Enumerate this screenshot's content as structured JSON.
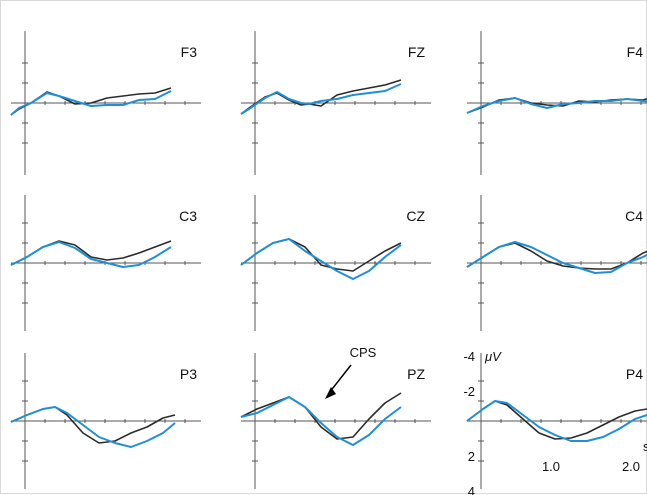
{
  "colors": {
    "black_series": "#2b2b2b",
    "blue_series": "#1f8fd6",
    "axis": "#555555",
    "background": "#ffffff"
  },
  "chart_data": {
    "type": "line",
    "title": "",
    "layout": "3x3 grid of ERP waveform panels",
    "y_axis": {
      "label": "μV",
      "ticks": [
        "-4",
        "-2",
        "2",
        "4"
      ],
      "range": [
        -4,
        4
      ],
      "inverted": true,
      "negative_up": true
    },
    "x_axis": {
      "ticks": [
        "1.0",
        "2.0"
      ],
      "unit": "s",
      "range": [
        0,
        2.5
      ]
    },
    "annotation": {
      "text": "CPS",
      "panel": "PZ"
    },
    "panels": [
      {
        "name": "F3",
        "black": [
          [
            0,
            1.2
          ],
          [
            0.1,
            0.6
          ],
          [
            0.25,
            0
          ],
          [
            0.45,
            -1.1
          ],
          [
            0.6,
            -0.7
          ],
          [
            0.8,
            0.1
          ],
          [
            1.0,
            0
          ],
          [
            1.2,
            -0.5
          ],
          [
            1.4,
            -0.7
          ],
          [
            1.6,
            -0.9
          ],
          [
            1.8,
            -1.0
          ],
          [
            2.0,
            -1.5
          ]
        ],
        "blue": [
          [
            0,
            1.2
          ],
          [
            0.1,
            0.5
          ],
          [
            0.25,
            0
          ],
          [
            0.45,
            -1.0
          ],
          [
            0.6,
            -0.7
          ],
          [
            0.8,
            -0.2
          ],
          [
            1.0,
            0.3
          ],
          [
            1.2,
            0.2
          ],
          [
            1.4,
            0.2
          ],
          [
            1.6,
            -0.3
          ],
          [
            1.8,
            -0.4
          ],
          [
            2.0,
            -1.2
          ]
        ]
      },
      {
        "name": "FZ",
        "black": [
          [
            0,
            1.1
          ],
          [
            0.1,
            0.5
          ],
          [
            0.3,
            -0.6
          ],
          [
            0.45,
            -1.0
          ],
          [
            0.6,
            -0.3
          ],
          [
            0.75,
            0.2
          ],
          [
            0.85,
            0.1
          ],
          [
            1.0,
            0.3
          ],
          [
            1.2,
            -0.8
          ],
          [
            1.4,
            -1.2
          ],
          [
            1.6,
            -1.5
          ],
          [
            1.8,
            -1.8
          ],
          [
            2.0,
            -2.3
          ]
        ],
        "blue": [
          [
            0,
            1.1
          ],
          [
            0.1,
            0.6
          ],
          [
            0.3,
            -0.5
          ],
          [
            0.45,
            -1.1
          ],
          [
            0.6,
            -0.4
          ],
          [
            0.75,
            0
          ],
          [
            0.85,
            0.1
          ],
          [
            1.0,
            -0.2
          ],
          [
            1.2,
            -0.4
          ],
          [
            1.4,
            -0.8
          ],
          [
            1.6,
            -1.0
          ],
          [
            1.8,
            -1.2
          ],
          [
            2.0,
            -1.9
          ]
        ]
      },
      {
        "name": "F4",
        "black": [
          [
            0,
            1.0
          ],
          [
            0.2,
            0.4
          ],
          [
            0.4,
            -0.3
          ],
          [
            0.6,
            -0.5
          ],
          [
            0.8,
            0
          ],
          [
            1.0,
            0.2
          ],
          [
            1.2,
            0.3
          ],
          [
            1.4,
            -0.2
          ],
          [
            1.6,
            -0.1
          ],
          [
            1.8,
            -0.3
          ],
          [
            2.0,
            -0.4
          ],
          [
            2.2,
            -0.3
          ],
          [
            2.4,
            -0.8
          ],
          [
            2.5,
            -1.4
          ]
        ],
        "blue": [
          [
            0,
            1.0
          ],
          [
            0.2,
            0.3
          ],
          [
            0.4,
            -0.2
          ],
          [
            0.6,
            -0.5
          ],
          [
            0.8,
            0.1
          ],
          [
            1.0,
            0.5
          ],
          [
            1.2,
            0.1
          ],
          [
            1.4,
            0.0
          ],
          [
            1.6,
            -0.2
          ],
          [
            1.8,
            -0.2
          ],
          [
            2.0,
            -0.4
          ],
          [
            2.2,
            -0.2
          ],
          [
            2.4,
            -0.1
          ],
          [
            2.5,
            -0.3
          ]
        ]
      },
      {
        "name": "C3",
        "black": [
          [
            0,
            0.2
          ],
          [
            0.2,
            -0.6
          ],
          [
            0.4,
            -1.6
          ],
          [
            0.6,
            -2.2
          ],
          [
            0.8,
            -1.8
          ],
          [
            1.0,
            -0.6
          ],
          [
            1.2,
            -0.3
          ],
          [
            1.4,
            -0.5
          ],
          [
            1.6,
            -1.0
          ],
          [
            1.8,
            -1.6
          ],
          [
            2.0,
            -2.2
          ]
        ],
        "blue": [
          [
            0,
            0.2
          ],
          [
            0.2,
            -0.6
          ],
          [
            0.4,
            -1.6
          ],
          [
            0.6,
            -2.1
          ],
          [
            0.8,
            -1.5
          ],
          [
            1.0,
            -0.4
          ],
          [
            1.2,
            0.0
          ],
          [
            1.4,
            0.4
          ],
          [
            1.6,
            0.2
          ],
          [
            1.8,
            -0.6
          ],
          [
            2.0,
            -1.6
          ]
        ]
      },
      {
        "name": "CZ",
        "black": [
          [
            0,
            0.2
          ],
          [
            0.2,
            -1.0
          ],
          [
            0.4,
            -2.0
          ],
          [
            0.6,
            -2.4
          ],
          [
            0.8,
            -1.6
          ],
          [
            1.0,
            0.2
          ],
          [
            1.2,
            0.6
          ],
          [
            1.4,
            0.8
          ],
          [
            1.6,
            -0.2
          ],
          [
            1.8,
            -1.2
          ],
          [
            2.0,
            -2.0
          ]
        ],
        "blue": [
          [
            0,
            0.2
          ],
          [
            0.2,
            -1.0
          ],
          [
            0.4,
            -2.0
          ],
          [
            0.6,
            -2.4
          ],
          [
            0.8,
            -1.2
          ],
          [
            1.0,
            -0.2
          ],
          [
            1.2,
            0.8
          ],
          [
            1.4,
            1.6
          ],
          [
            1.6,
            0.8
          ],
          [
            1.8,
            -0.6
          ],
          [
            2.0,
            -1.8
          ]
        ]
      },
      {
        "name": "C4",
        "black": [
          [
            0,
            0.4
          ],
          [
            0.2,
            -0.6
          ],
          [
            0.4,
            -1.6
          ],
          [
            0.6,
            -2.0
          ],
          [
            0.8,
            -1.2
          ],
          [
            1.0,
            -0.2
          ],
          [
            1.2,
            0.3
          ],
          [
            1.4,
            0.5
          ],
          [
            1.6,
            0.6
          ],
          [
            1.8,
            0.6
          ],
          [
            2.0,
            0.0
          ],
          [
            2.2,
            -1.0
          ],
          [
            2.4,
            -1.6
          ]
        ],
        "blue": [
          [
            0,
            0.4
          ],
          [
            0.2,
            -0.6
          ],
          [
            0.4,
            -1.6
          ],
          [
            0.6,
            -2.1
          ],
          [
            0.8,
            -1.6
          ],
          [
            1.0,
            -0.8
          ],
          [
            1.2,
            0.0
          ],
          [
            1.4,
            0.5
          ],
          [
            1.6,
            1.0
          ],
          [
            1.8,
            0.9
          ],
          [
            2.0,
            0.0
          ],
          [
            2.2,
            -0.6
          ],
          [
            2.4,
            -1.4
          ]
        ]
      },
      {
        "name": "P3",
        "black": [
          [
            0,
            0.1
          ],
          [
            0.2,
            -0.6
          ],
          [
            0.4,
            -1.2
          ],
          [
            0.55,
            -1.4
          ],
          [
            0.7,
            -0.6
          ],
          [
            0.9,
            1.2
          ],
          [
            1.1,
            2.2
          ],
          [
            1.3,
            2.0
          ],
          [
            1.5,
            1.2
          ],
          [
            1.7,
            0.6
          ],
          [
            1.9,
            -0.3
          ],
          [
            2.05,
            -0.6
          ]
        ],
        "blue": [
          [
            0,
            0.1
          ],
          [
            0.2,
            -0.6
          ],
          [
            0.4,
            -1.2
          ],
          [
            0.55,
            -1.4
          ],
          [
            0.7,
            -0.8
          ],
          [
            0.9,
            0.4
          ],
          [
            1.1,
            1.6
          ],
          [
            1.3,
            2.2
          ],
          [
            1.5,
            2.6
          ],
          [
            1.7,
            2.0
          ],
          [
            1.9,
            1.2
          ],
          [
            2.05,
            0.2
          ]
        ]
      },
      {
        "name": "PZ",
        "black": [
          [
            0,
            -0.4
          ],
          [
            0.2,
            -1.2
          ],
          [
            0.4,
            -1.8
          ],
          [
            0.6,
            -2.4
          ],
          [
            0.8,
            -1.4
          ],
          [
            1.0,
            0.6
          ],
          [
            1.2,
            1.8
          ],
          [
            1.4,
            1.6
          ],
          [
            1.6,
            -0.2
          ],
          [
            1.8,
            -1.8
          ],
          [
            2.0,
            -2.8
          ]
        ],
        "blue": [
          [
            0,
            -0.4
          ],
          [
            0.2,
            -0.8
          ],
          [
            0.4,
            -1.6
          ],
          [
            0.6,
            -2.4
          ],
          [
            0.8,
            -1.4
          ],
          [
            1.0,
            0.2
          ],
          [
            1.2,
            1.6
          ],
          [
            1.4,
            2.4
          ],
          [
            1.6,
            1.4
          ],
          [
            1.8,
            -0.2
          ],
          [
            2.0,
            -1.4
          ]
        ]
      },
      {
        "name": "P4",
        "black": [
          [
            0,
            0.0
          ],
          [
            0.2,
            -1.2
          ],
          [
            0.35,
            -2.0
          ],
          [
            0.5,
            -1.6
          ],
          [
            0.7,
            -0.2
          ],
          [
            0.9,
            1.2
          ],
          [
            1.1,
            1.8
          ],
          [
            1.3,
            1.7
          ],
          [
            1.5,
            1.2
          ],
          [
            1.7,
            0.4
          ],
          [
            1.9,
            -0.4
          ],
          [
            2.1,
            -1.0
          ],
          [
            2.25,
            -1.2
          ]
        ],
        "blue": [
          [
            0,
            0.0
          ],
          [
            0.2,
            -1.2
          ],
          [
            0.35,
            -2.0
          ],
          [
            0.5,
            -1.8
          ],
          [
            0.7,
            -0.6
          ],
          [
            0.9,
            0.6
          ],
          [
            1.1,
            1.4
          ],
          [
            1.3,
            2.0
          ],
          [
            1.5,
            2.0
          ],
          [
            1.7,
            1.6
          ],
          [
            1.9,
            0.8
          ],
          [
            2.1,
            -0.2
          ],
          [
            2.25,
            -0.6
          ]
        ]
      }
    ]
  }
}
